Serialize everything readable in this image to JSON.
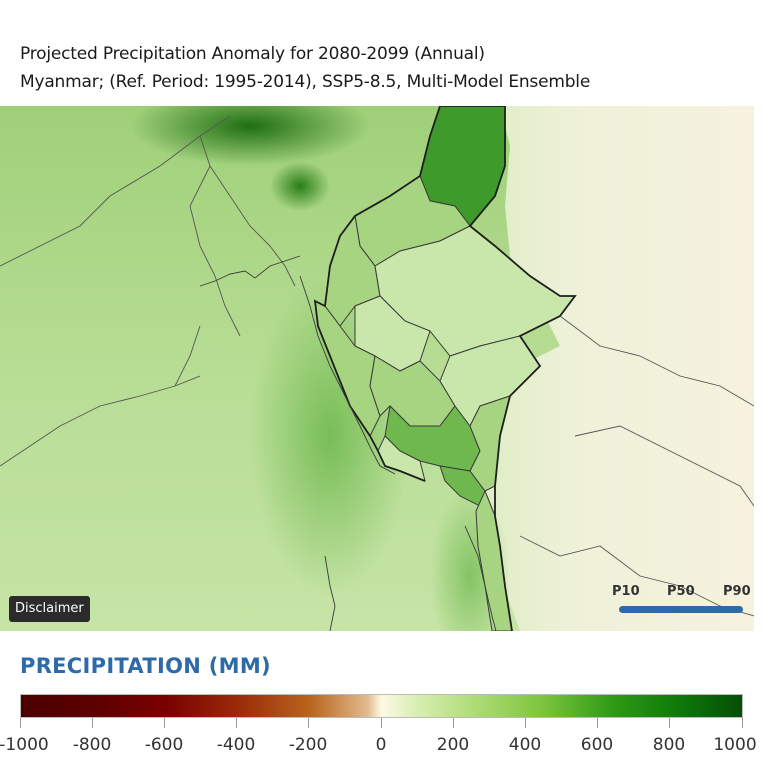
{
  "header": {
    "title": "Projected Precipitation Anomaly for 2080-2099 (Annual)",
    "subtitle": "Myanmar; (Ref. Period: 1995-2014), SSP5-8.5, Multi-Model Ensemble"
  },
  "map": {
    "disclaimer_label": "Disclaimer",
    "percentiles": [
      "P10",
      "P50",
      "P90"
    ],
    "colors": {
      "background_green": "#c7e6a8",
      "dark_green": "#2f8a1e",
      "region_light": "#c9e7aa",
      "region_mid": "#a6d480",
      "region_dark": "#3e9a2a",
      "land_east": "#f2efd9",
      "border": "#333333",
      "percentile_bar": "#2f6aa8"
    }
  },
  "legend": {
    "title": "PRECIPITATION (MM)",
    "ticks": [
      "-1000",
      "-800",
      "-600",
      "-400",
      "-200",
      "0",
      "200",
      "400",
      "600",
      "800",
      "1000"
    ],
    "range": [
      -1000,
      1000
    ]
  }
}
